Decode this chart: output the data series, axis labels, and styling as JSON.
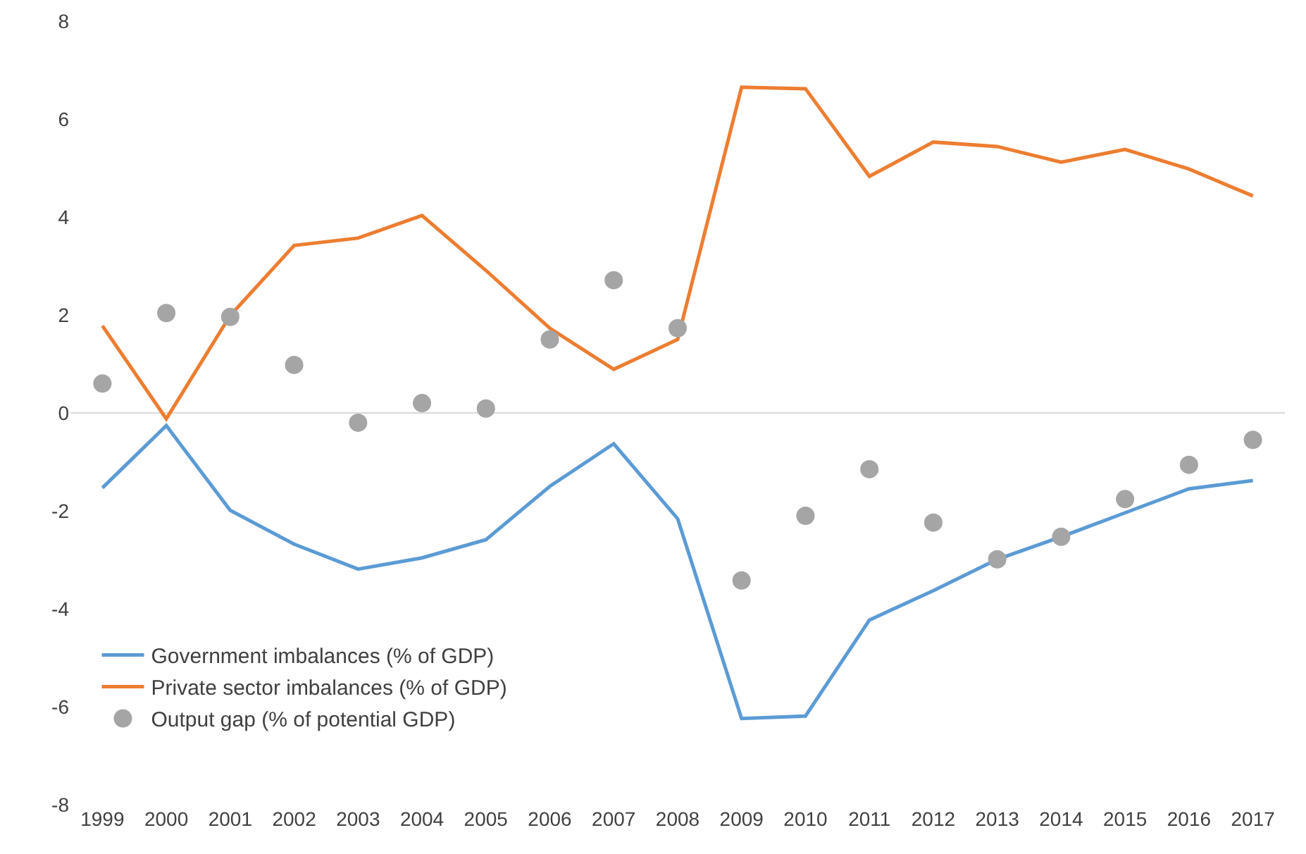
{
  "chart_data": {
    "type": "line",
    "categories": [
      "1999",
      "2000",
      "2001",
      "2002",
      "2003",
      "2004",
      "2005",
      "2006",
      "2007",
      "2008",
      "2009",
      "2010",
      "2011",
      "2012",
      "2013",
      "2014",
      "2015",
      "2016",
      "2017"
    ],
    "series": [
      {
        "name": "Government imbalances (% of GDP)",
        "color": "#5b9bd5",
        "values": [
          -1.53,
          -0.26,
          -1.99,
          -2.68,
          -3.19,
          -2.96,
          -2.59,
          -1.5,
          -0.63,
          -2.16,
          -6.24,
          -6.19,
          -4.23,
          -3.63,
          -2.99,
          -2.53,
          -2.04,
          -1.55,
          -1.38
        ]
      },
      {
        "name": "Private sector imbalances (% of GDP)",
        "color": "#ed7d31",
        "values": [
          1.78,
          -0.12,
          1.99,
          3.42,
          3.57,
          4.03,
          2.91,
          1.73,
          0.89,
          1.5,
          6.65,
          6.62,
          4.83,
          5.53,
          5.44,
          5.12,
          5.38,
          4.98,
          4.43
        ]
      },
      {
        "name": "Output gap (% of potential GDP)",
        "type": "scatter",
        "marker": "circle",
        "color": "#a5a5a5",
        "values": [
          0.6,
          2.04,
          1.96,
          0.98,
          -0.2,
          0.2,
          0.09,
          1.5,
          2.71,
          1.73,
          -3.42,
          -2.1,
          -1.15,
          -2.24,
          -2.99,
          -2.53,
          -1.76,
          -1.06,
          -0.55
        ]
      }
    ],
    "ylim": [
      -8,
      8
    ],
    "yticks": [
      -8,
      -6,
      -4,
      -2,
      0,
      2,
      4,
      6,
      8
    ],
    "grid": false,
    "ref_lines": [
      {
        "axis": "y",
        "value": 0,
        "color": "#d9d9d9"
      }
    ],
    "legend": "bottom left",
    "line_style": "solid"
  }
}
